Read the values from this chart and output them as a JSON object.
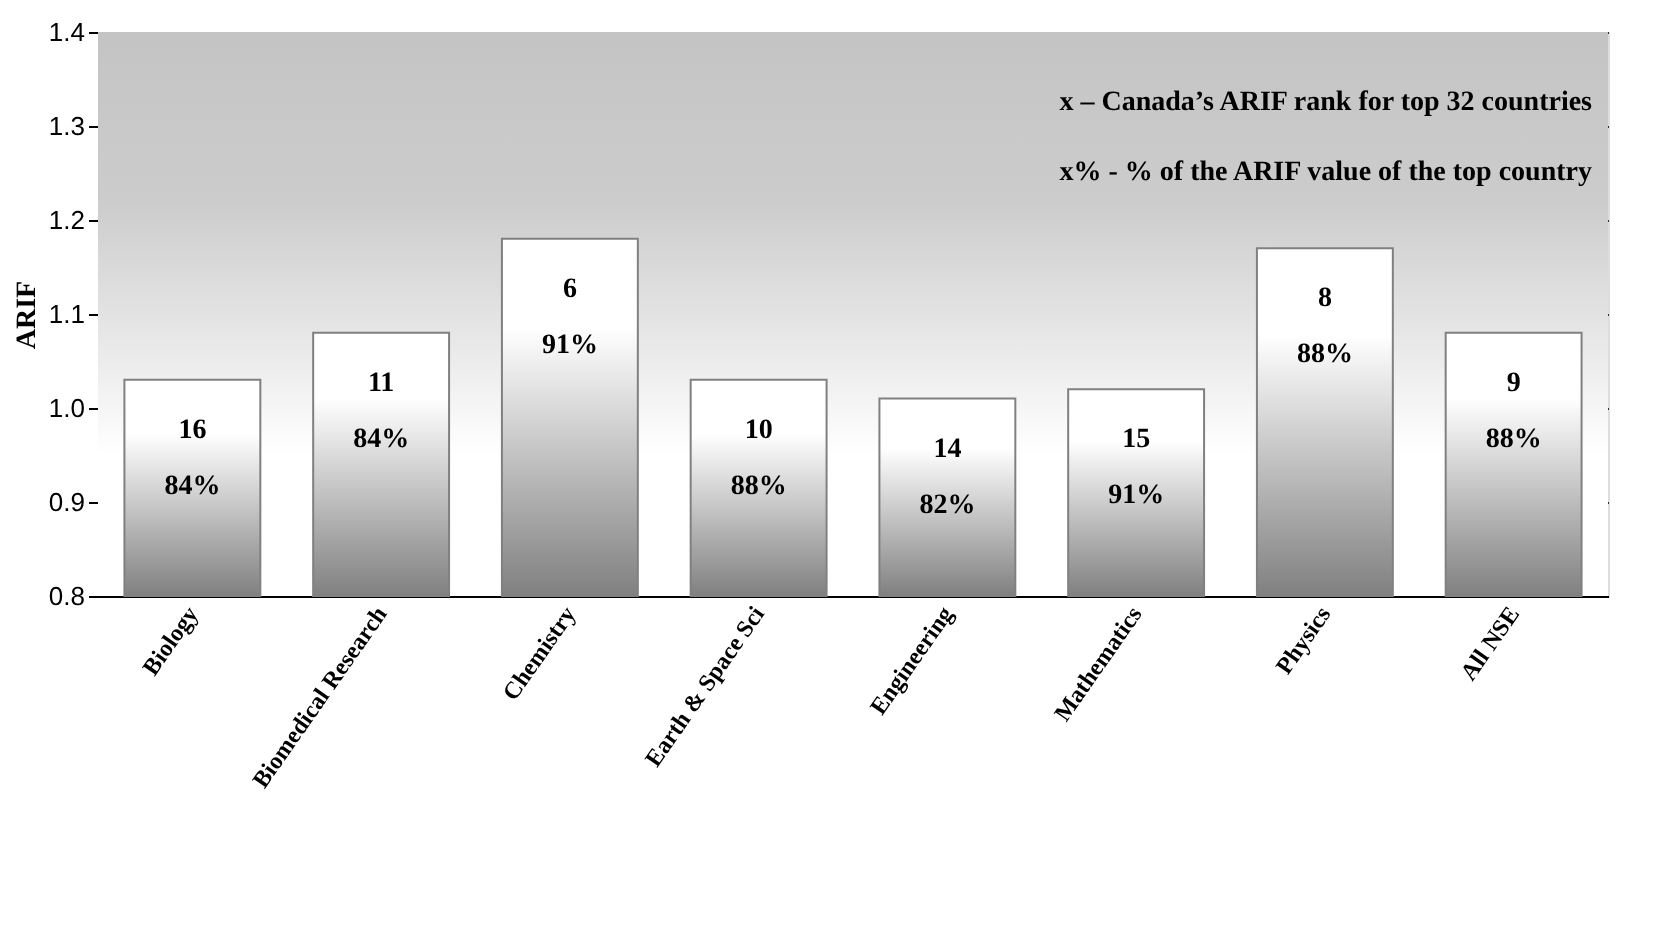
{
  "chart_data": {
    "type": "bar",
    "categories": [
      "Biology",
      "Biomedical Research",
      "Chemistry",
      "Earth & Space Sci",
      "Engineering",
      "Mathematics",
      "Physics",
      "All NSE"
    ],
    "values": [
      1.03,
      1.08,
      1.18,
      1.03,
      1.01,
      1.02,
      1.17,
      1.08
    ],
    "color": "#808080",
    "ylabel": "ARIF",
    "ylim": [
      0.8,
      1.4
    ],
    "yticks": [
      0.8,
      0.9,
      {
        "value": 1.0,
        "label": "1.0"
      },
      1.1,
      1.2,
      1.3,
      1.4
    ],
    "grid": "y",
    "annotations": [
      "x – Canada’s ARIF rank for top 32 countries",
      "x% - % of the  ARIF value of the top country",
      {
        "text": "16\n84%",
        "x": "Biology",
        "y": 1.03
      },
      {
        "text": "11\n84%",
        "x": "Biomedical Research",
        "y": 1.08
      },
      {
        "text": "6\n91%",
        "x": "Chemistry",
        "y": 1.18
      },
      {
        "text": "10\n88%",
        "x": "Earth & Space Sci",
        "y": 1.03
      },
      {
        "text": "14\n82%",
        "x": "Engineering",
        "y": 1.01
      },
      {
        "text": "15\n91%",
        "x": "Mathematics",
        "y": 1.02
      },
      {
        "text": "8\n88%",
        "x": "Physics",
        "y": 1.17
      },
      {
        "text": "9\n88%",
        "x": "All NSE",
        "y": 1.08
      }
    ]
  }
}
